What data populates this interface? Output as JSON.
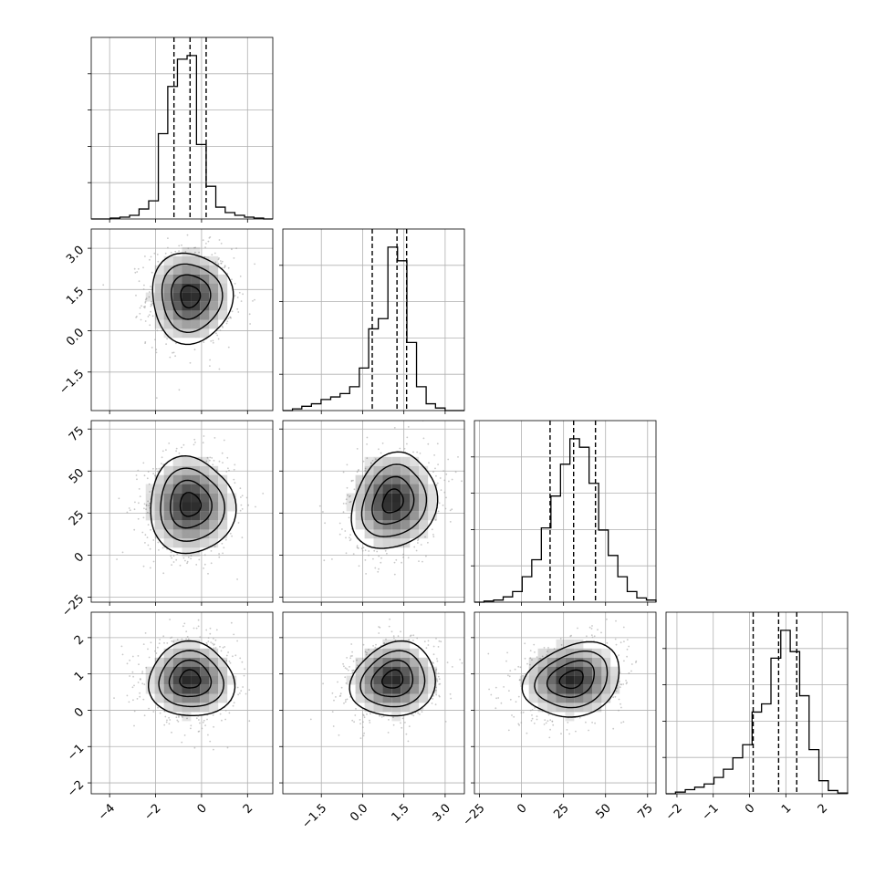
{
  "chart_data": {
    "type": "corner",
    "n_params": 4,
    "quantile_probs": [
      0.16,
      0.5,
      0.84
    ],
    "params": [
      {
        "index": 0,
        "range": [
          -4.8,
          3.1
        ],
        "ticks": [
          -4,
          -2,
          0,
          2
        ],
        "tick_labels": [
          "−4",
          "−2",
          "0",
          "2"
        ],
        "quantiles": [
          -1.2,
          -0.5,
          0.2
        ],
        "marginal": {
          "bin_edges": [
            -4.8,
            -4.38,
            -3.97,
            -3.55,
            -3.13,
            -2.72,
            -2.3,
            -1.88,
            -1.47,
            -1.05,
            -0.63,
            -0.22,
            0.2,
            0.62,
            1.03,
            1.45,
            1.87,
            2.28,
            2.7,
            3.1
          ],
          "counts": [
            0.0,
            0.0,
            0.005,
            0.01,
            0.02,
            0.055,
            0.1,
            0.47,
            0.73,
            0.88,
            0.9,
            0.41,
            0.18,
            0.065,
            0.035,
            0.02,
            0.01,
            0.005,
            0.0
          ]
        }
      },
      {
        "index": 1,
        "range": [
          -2.9,
          3.7
        ],
        "ticks": [
          -1.5,
          0.0,
          1.5,
          3.0
        ],
        "tick_labels": [
          "−1.5",
          "0.0",
          "1.5",
          "3.0"
        ],
        "quantiles": [
          0.35,
          1.25,
          1.6
        ],
        "marginal": {
          "bin_edges": [
            -2.9,
            -2.55,
            -2.21,
            -1.86,
            -1.51,
            -1.16,
            -0.82,
            -0.47,
            -0.12,
            0.22,
            0.57,
            0.92,
            1.27,
            1.61,
            1.96,
            2.31,
            2.65,
            3.0,
            3.35,
            3.7
          ],
          "counts": [
            0.0,
            0.01,
            0.025,
            0.04,
            0.065,
            0.08,
            0.1,
            0.14,
            0.25,
            0.48,
            0.54,
            0.96,
            0.88,
            0.4,
            0.14,
            0.04,
            0.015,
            0.0,
            0.0
          ]
        }
      },
      {
        "index": 2,
        "range": [
          -28,
          80
        ],
        "ticks": [
          -25,
          0,
          25,
          50,
          75
        ],
        "tick_labels": [
          "−25",
          "0",
          "25",
          "50",
          "75"
        ],
        "quantiles": [
          17,
          31,
          44
        ],
        "marginal": {
          "bin_edges": [
            -28,
            -22.3,
            -16.6,
            -10.9,
            -5.3,
            0.4,
            6.1,
            11.8,
            17.5,
            23.2,
            28.8,
            34.5,
            40.2,
            45.9,
            51.6,
            57.3,
            62.9,
            68.6,
            74.3,
            80
          ],
          "counts": [
            0.0,
            0.005,
            0.01,
            0.025,
            0.05,
            0.12,
            0.2,
            0.35,
            0.5,
            0.65,
            0.77,
            0.73,
            0.56,
            0.34,
            0.22,
            0.12,
            0.05,
            0.02,
            0.01
          ]
        }
      },
      {
        "index": 3,
        "range": [
          -2.3,
          2.7
        ],
        "ticks": [
          -2,
          -1,
          0,
          1,
          2
        ],
        "tick_labels": [
          "−2",
          "−1",
          "0",
          "1",
          "2"
        ],
        "quantiles": [
          0.1,
          0.8,
          1.3
        ],
        "marginal": {
          "bin_edges": [
            -2.3,
            -2.04,
            -1.77,
            -1.51,
            -1.25,
            -0.98,
            -0.72,
            -0.46,
            -0.19,
            0.07,
            0.33,
            0.59,
            0.86,
            1.12,
            1.38,
            1.64,
            1.91,
            2.17,
            2.43,
            2.7
          ],
          "counts": [
            0.0,
            0.01,
            0.025,
            0.04,
            0.06,
            0.1,
            0.15,
            0.22,
            0.3,
            0.5,
            0.55,
            0.83,
            1.0,
            0.87,
            0.6,
            0.27,
            0.08,
            0.02,
            0.005
          ]
        }
      }
    ],
    "pairs": [
      {
        "x": 0,
        "y": 1,
        "center": [
          -0.5,
          1.25
        ],
        "spread": [
          0.85,
          0.8
        ],
        "corr": 0.0
      },
      {
        "x": 0,
        "y": 2,
        "center": [
          -0.5,
          30
        ],
        "spread": [
          0.9,
          14
        ],
        "corr": 0.0
      },
      {
        "x": 1,
        "y": 2,
        "center": [
          1.1,
          32
        ],
        "spread": [
          0.75,
          14
        ],
        "corr": 0.2
      },
      {
        "x": 0,
        "y": 3,
        "center": [
          -0.5,
          0.85
        ],
        "spread": [
          0.9,
          0.5
        ],
        "corr": 0.0
      },
      {
        "x": 1,
        "y": 3,
        "center": [
          1.1,
          0.85
        ],
        "spread": [
          0.75,
          0.5
        ],
        "corr": 0.15
      },
      {
        "x": 2,
        "y": 3,
        "center": [
          30,
          0.85
        ],
        "spread": [
          14,
          0.5
        ],
        "corr": 0.25
      }
    ],
    "contour_levels_sigma": [
      0.5,
      1.0,
      1.5,
      2.0
    ],
    "colors": {
      "points": "#9a9a9a",
      "lines": "#000000",
      "grid": "#b0b0b0",
      "density": "#000000"
    }
  }
}
